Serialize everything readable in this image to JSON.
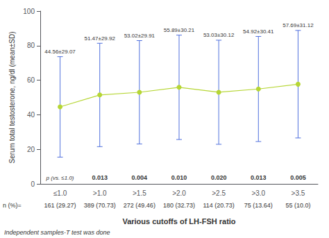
{
  "chart_data": {
    "type": "line",
    "categories": [
      "≤1.0",
      ">1.0",
      ">1.5",
      ">2.0",
      ">2.5",
      ">3.0",
      ">3.5"
    ],
    "values": [
      44.56,
      51.47,
      53.02,
      55.89,
      53.03,
      54.92,
      57.69
    ],
    "errors": [
      29.07,
      29.92,
      29.91,
      30.21,
      30.12,
      30.41,
      31.12
    ],
    "data_labels": true,
    "value_labels": [
      "44.56±29.07",
      "51.47±29.92",
      "53.02±29.91",
      "55.89±30.21",
      "53.03±30.12",
      "54.92±30.41",
      "57.69±31.12"
    ],
    "p_values": [
      "p (vs. ≤1.0)",
      "0.013",
      "0.004",
      "0.010",
      "0.020",
      "0.013",
      "0.005"
    ],
    "n_label": "n (%)=",
    "n_values": [
      "161 (29.27)",
      "389 (70.73)",
      "272 (49.46)",
      "180 (32.73)",
      "114 (20.73)",
      "75 (13.64)",
      "55 (10.0)"
    ],
    "ylabel": "Serum total testosterone, ng/dl (mean±SD)",
    "xlabel": "Various cutoffs of LH-FSH ratio",
    "footnote": "Independent samples-T test was done",
    "marker": "circle",
    "ylim": [
      0,
      100
    ],
    "yticks": [
      0,
      20,
      40,
      60,
      80,
      100
    ],
    "grid": false
  }
}
